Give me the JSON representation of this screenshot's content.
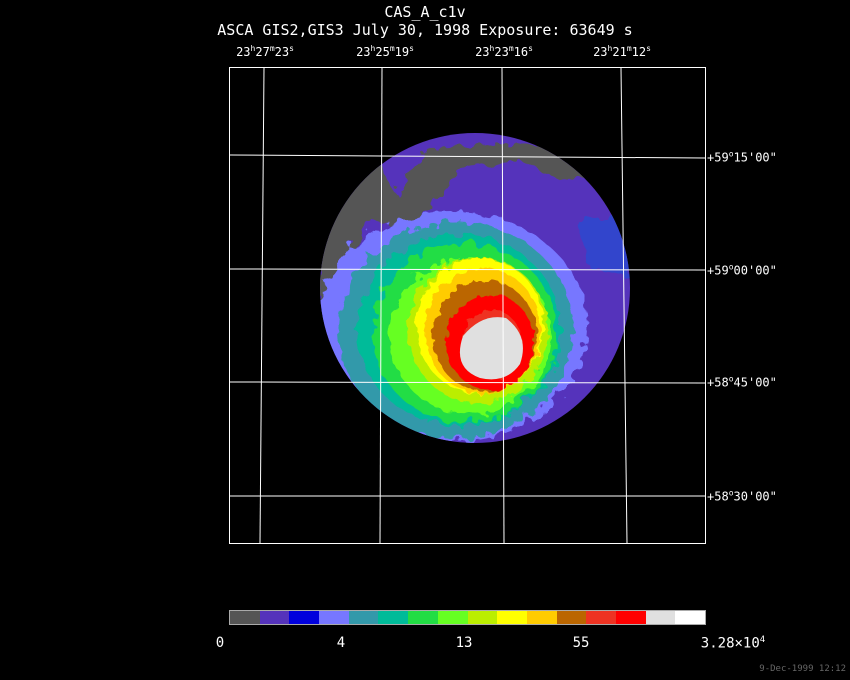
{
  "header": {
    "title": "CAS_A_c1v",
    "subtitle": "ASCA GIS2,GIS3 July 30, 1998 Exposure: 63649 s"
  },
  "ra_ticks": [
    {
      "h": "23",
      "m": "27",
      "s": "23"
    },
    {
      "h": "23",
      "m": "25",
      "s": "19"
    },
    {
      "h": "23",
      "m": "23",
      "s": "16"
    },
    {
      "h": "23",
      "m": "21",
      "s": "12"
    }
  ],
  "dec_ticks": [
    {
      "deg": "+59",
      "arcmin": "15",
      "arcsec": "00"
    },
    {
      "deg": "+59",
      "arcmin": "00",
      "arcsec": "00"
    },
    {
      "deg": "+58",
      "arcmin": "45",
      "arcsec": "00"
    },
    {
      "deg": "+58",
      "arcmin": "30",
      "arcsec": "00"
    }
  ],
  "colorbar": {
    "colors": [
      "#555555",
      "#5533bb",
      "#0000dd",
      "#7777ff",
      "#3399aa",
      "#00bb99",
      "#22dd44",
      "#66ff22",
      "#bbee00",
      "#ffff00",
      "#ffcc00",
      "#bb6600",
      "#ee3322",
      "#ff0000",
      "#e0e0e0",
      "#ffffff"
    ],
    "labels": {
      "l0": "0",
      "l1": "4",
      "l2": "13",
      "l3": "55",
      "l4_base": "3.28×10",
      "l4_exp": "4"
    }
  },
  "footer": {
    "timestamp": "9-Dec-1999 12:12"
  }
}
